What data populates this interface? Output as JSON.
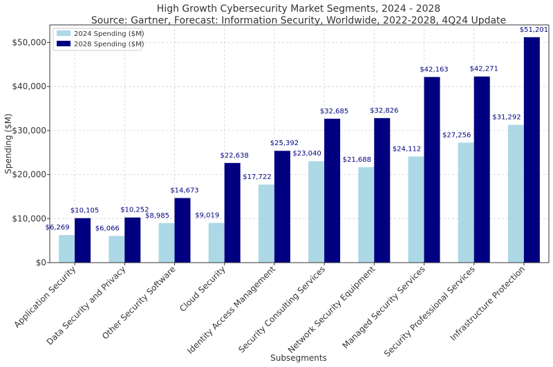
{
  "chart_data": {
    "type": "bar",
    "title": "High Growth Cybersecurity Market Segments, 2024 - 2028",
    "subtitle": "Source: Gartner, Forecast: Information Security, Worldwide, 2022-2028, 4Q24 Update",
    "xlabel": "Subsegments",
    "ylabel": "Spending ($M)",
    "ylim": [
      0,
      54000
    ],
    "yticks": [
      0,
      10000,
      20000,
      30000,
      40000,
      50000
    ],
    "ytick_labels": [
      "$0",
      "$10,000",
      "$20,000",
      "$30,000",
      "$40,000",
      "$50,000"
    ],
    "grid": true,
    "legend_position": "top-left",
    "categories": [
      "Application Security",
      "Data Security and Privacy",
      "Other Security Software",
      "Cloud Security",
      "Identity Access Management",
      "Security Consulting Services",
      "Network Security Equipment",
      "Managed Security Services",
      "Security Professional Services",
      "Infrastructure Protection"
    ],
    "series": [
      {
        "name": "2024 Spending ($M)",
        "color": "#add8e6",
        "values": [
          6269,
          6066,
          8985,
          9019,
          17722,
          23040,
          21688,
          24112,
          27256,
          31292
        ],
        "labels": [
          "$6,269",
          "$6,066",
          "$8,985",
          "$9,019",
          "$17,722",
          "$23,040",
          "$21,688",
          "$24,112",
          "$27,256",
          "$31,292"
        ]
      },
      {
        "name": "2028 Spending ($M)",
        "color": "#000080",
        "values": [
          10105,
          10252,
          14673,
          22638,
          25392,
          32685,
          32826,
          42163,
          42271,
          51201
        ],
        "labels": [
          "$10,105",
          "$10,252",
          "$14,673",
          "$22,638",
          "$25,392",
          "$32,685",
          "$32,826",
          "$42,163",
          "$42,271",
          "$51,201"
        ]
      }
    ]
  }
}
